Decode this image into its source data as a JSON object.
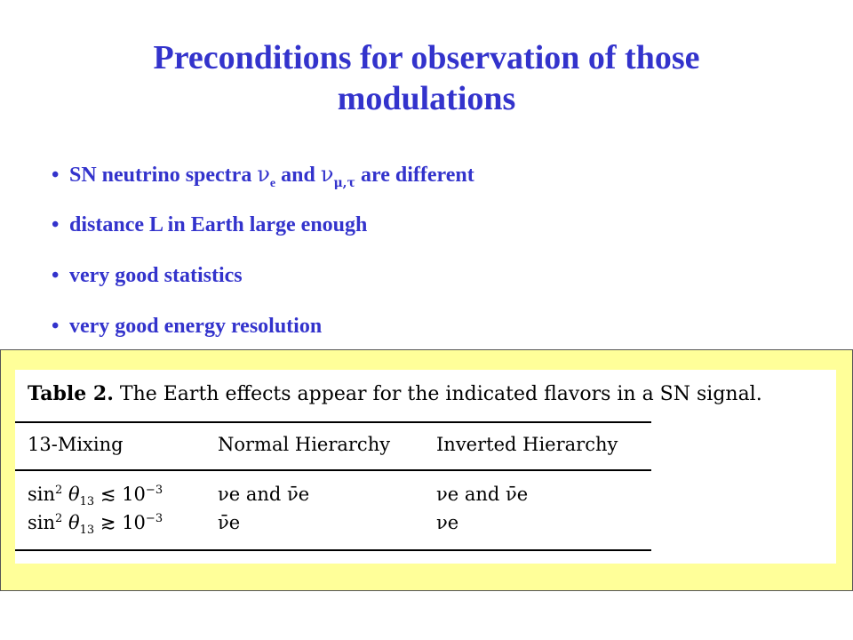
{
  "slide": {
    "title_line1": "Preconditions for observation of those",
    "title_line2": "modulations",
    "bullets": [
      {
        "pre": "SN neutrino spectra ",
        "nu1": "ν",
        "sub1": "e",
        "mid": " and ",
        "nu2": "ν",
        "sub2": "μ,τ",
        "post": " are different"
      },
      {
        "text": "distance L in Earth large enough"
      },
      {
        "text": "very good statistics"
      },
      {
        "text": "very good energy resolution"
      }
    ],
    "bullet_char": "•",
    "colors": {
      "text": "#3333cc",
      "panel": "#ffff99",
      "figure": "#ffffff"
    }
  },
  "table": {
    "caption_label": "Table 2.",
    "caption_text": "The Earth effects appear for the indicated flavors in a SN signal.",
    "headers": [
      "13-Mixing",
      "Normal Hierarchy",
      "Inverted Hierarchy"
    ],
    "rows": [
      {
        "mixing_fn": "sin",
        "mixing_exp": "2",
        "mixing_var": "θ",
        "mixing_sub": "13",
        "relation": "≲",
        "bound": "10",
        "bound_exp": "−3",
        "normal": "νe and ν̄e",
        "inverted": "νe and ν̄e"
      },
      {
        "mixing_fn": "sin",
        "mixing_exp": "2",
        "mixing_var": "θ",
        "mixing_sub": "13",
        "relation": "≳",
        "bound": "10",
        "bound_exp": "−3",
        "normal": "ν̄e",
        "inverted": "νe"
      }
    ]
  }
}
